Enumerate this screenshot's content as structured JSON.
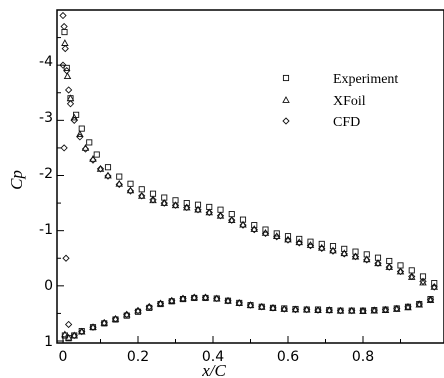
{
  "chart_data": {
    "type": "scatter",
    "title": "",
    "xlabel": "x/C",
    "ylabel": "Cp",
    "xlim": [
      0,
      1
    ],
    "ylim": [
      1,
      -5
    ],
    "y_inverted": true,
    "grid": false,
    "legend_position": "top-right",
    "x_ticks": [
      0,
      0.2,
      0.4,
      0.6,
      0.8
    ],
    "x_tick_labels": [
      "0",
      "0.2",
      "0.4",
      "0.6",
      "0.8"
    ],
    "y_ticks": [
      -4,
      -3,
      -2,
      -1,
      0,
      1
    ],
    "y_tick_labels": [
      "-4",
      "-3",
      "-2",
      "-1",
      "0",
      "1"
    ],
    "series": [
      {
        "name": "Experiment",
        "marker": "square",
        "upper": {
          "x": [
            0.004,
            0.01,
            0.02,
            0.035,
            0.05,
            0.07,
            0.09,
            0.12,
            0.15,
            0.18,
            0.21,
            0.24,
            0.27,
            0.3,
            0.33,
            0.36,
            0.39,
            0.42,
            0.45,
            0.48,
            0.51,
            0.54,
            0.57,
            0.6,
            0.63,
            0.66,
            0.69,
            0.72,
            0.75,
            0.78,
            0.81,
            0.84,
            0.87,
            0.9,
            0.93,
            0.96,
            0.99
          ],
          "y": [
            -4.6,
            -3.95,
            -3.4,
            -3.1,
            -2.85,
            -2.6,
            -2.38,
            -2.15,
            -1.98,
            -1.85,
            -1.75,
            -1.67,
            -1.6,
            -1.55,
            -1.5,
            -1.47,
            -1.43,
            -1.38,
            -1.3,
            -1.2,
            -1.1,
            -1.02,
            -0.95,
            -0.9,
            -0.85,
            -0.8,
            -0.76,
            -0.72,
            -0.67,
            -0.62,
            -0.57,
            -0.51,
            -0.45,
            -0.37,
            -0.28,
            -0.17,
            -0.05
          ]
        },
        "lower": {
          "x": [
            0.005,
            0.015,
            0.03,
            0.05,
            0.08,
            0.11,
            0.14,
            0.17,
            0.2,
            0.23,
            0.26,
            0.29,
            0.32,
            0.35,
            0.38,
            0.41,
            0.44,
            0.47,
            0.5,
            0.53,
            0.56,
            0.59,
            0.62,
            0.65,
            0.68,
            0.71,
            0.74,
            0.77,
            0.8,
            0.83,
            0.86,
            0.89,
            0.92,
            0.95,
            0.98
          ],
          "y": [
            0.9,
            0.95,
            0.9,
            0.82,
            0.75,
            0.68,
            0.61,
            0.54,
            0.47,
            0.4,
            0.33,
            0.28,
            0.24,
            0.22,
            0.22,
            0.23,
            0.27,
            0.31,
            0.35,
            0.38,
            0.4,
            0.41,
            0.42,
            0.43,
            0.43,
            0.44,
            0.45,
            0.45,
            0.45,
            0.44,
            0.43,
            0.41,
            0.38,
            0.33,
            0.24
          ]
        }
      },
      {
        "name": "XFoil",
        "marker": "triangle",
        "upper": {
          "x": [
            0.005,
            0.012,
            0.02,
            0.03,
            0.045,
            0.06,
            0.08,
            0.1,
            0.12,
            0.15,
            0.18,
            0.21,
            0.24,
            0.27,
            0.3,
            0.33,
            0.36,
            0.39,
            0.42,
            0.45,
            0.48,
            0.51,
            0.54,
            0.57,
            0.6,
            0.63,
            0.66,
            0.69,
            0.72,
            0.75,
            0.78,
            0.81,
            0.84,
            0.87,
            0.9,
            0.93,
            0.96,
            0.99
          ],
          "y": [
            -4.4,
            -3.8,
            -3.4,
            -3.05,
            -2.75,
            -2.5,
            -2.3,
            -2.12,
            -2.0,
            -1.85,
            -1.73,
            -1.63,
            -1.55,
            -1.5,
            -1.46,
            -1.42,
            -1.38,
            -1.33,
            -1.27,
            -1.19,
            -1.11,
            -1.03,
            -0.96,
            -0.9,
            -0.84,
            -0.79,
            -0.74,
            -0.69,
            -0.64,
            -0.59,
            -0.53,
            -0.48,
            -0.41,
            -0.34,
            -0.26,
            -0.16,
            -0.06,
            0.02
          ]
        },
        "lower": {
          "x": [
            0.005,
            0.015,
            0.03,
            0.05,
            0.08,
            0.11,
            0.14,
            0.17,
            0.2,
            0.23,
            0.26,
            0.29,
            0.32,
            0.35,
            0.38,
            0.41,
            0.44,
            0.47,
            0.5,
            0.53,
            0.56,
            0.59,
            0.62,
            0.65,
            0.68,
            0.71,
            0.74,
            0.77,
            0.8,
            0.83,
            0.86,
            0.89,
            0.92,
            0.95,
            0.98
          ],
          "y": [
            0.88,
            0.94,
            0.9,
            0.83,
            0.75,
            0.67,
            0.6,
            0.52,
            0.45,
            0.38,
            0.32,
            0.27,
            0.23,
            0.21,
            0.21,
            0.23,
            0.27,
            0.31,
            0.35,
            0.38,
            0.4,
            0.42,
            0.43,
            0.43,
            0.44,
            0.44,
            0.45,
            0.45,
            0.46,
            0.45,
            0.44,
            0.42,
            0.39,
            0.34,
            0.26
          ]
        }
      },
      {
        "name": "CFD",
        "marker": "diamond",
        "upper": {
          "x": [
            0.0,
            0.003,
            0.006,
            0.01,
            0.015,
            0.02,
            0.03,
            0.045,
            0.06,
            0.08,
            0.1,
            0.12,
            0.15,
            0.18,
            0.21,
            0.24,
            0.27,
            0.3,
            0.33,
            0.36,
            0.39,
            0.42,
            0.45,
            0.48,
            0.51,
            0.54,
            0.57,
            0.6,
            0.63,
            0.66,
            0.69,
            0.72,
            0.75,
            0.78,
            0.81,
            0.84,
            0.87,
            0.9,
            0.93,
            0.96,
            0.99
          ],
          "y": [
            -4.9,
            -4.7,
            -4.3,
            -3.9,
            -3.55,
            -3.3,
            -3.0,
            -2.7,
            -2.48,
            -2.28,
            -2.12,
            -1.99,
            -1.84,
            -1.72,
            -1.63,
            -1.56,
            -1.5,
            -1.46,
            -1.42,
            -1.38,
            -1.33,
            -1.27,
            -1.19,
            -1.1,
            -1.02,
            -0.95,
            -0.89,
            -0.83,
            -0.78,
            -0.73,
            -0.68,
            -0.63,
            -0.58,
            -0.53,
            -0.47,
            -0.41,
            -0.34,
            -0.26,
            -0.17,
            -0.08,
            0.02
          ]
        },
        "lower": {
          "x": [
            0.0,
            0.003,
            0.008,
            0.015,
            0.03,
            0.05,
            0.08,
            0.11,
            0.14,
            0.17,
            0.2,
            0.23,
            0.26,
            0.29,
            0.32,
            0.35,
            0.38,
            0.41,
            0.44,
            0.47,
            0.5,
            0.53,
            0.56,
            0.59,
            0.62,
            0.65,
            0.68,
            0.71,
            0.74,
            0.77,
            0.8,
            0.83,
            0.86,
            0.89,
            0.92,
            0.95,
            0.98
          ],
          "y": [
            -4.0,
            -2.5,
            -0.5,
            0.7,
            0.9,
            0.83,
            0.75,
            0.67,
            0.6,
            0.52,
            0.45,
            0.38,
            0.32,
            0.27,
            0.23,
            0.21,
            0.21,
            0.23,
            0.27,
            0.31,
            0.35,
            0.38,
            0.4,
            0.42,
            0.43,
            0.43,
            0.44,
            0.44,
            0.45,
            0.45,
            0.45,
            0.44,
            0.43,
            0.41,
            0.38,
            0.33,
            0.25
          ]
        }
      }
    ]
  }
}
